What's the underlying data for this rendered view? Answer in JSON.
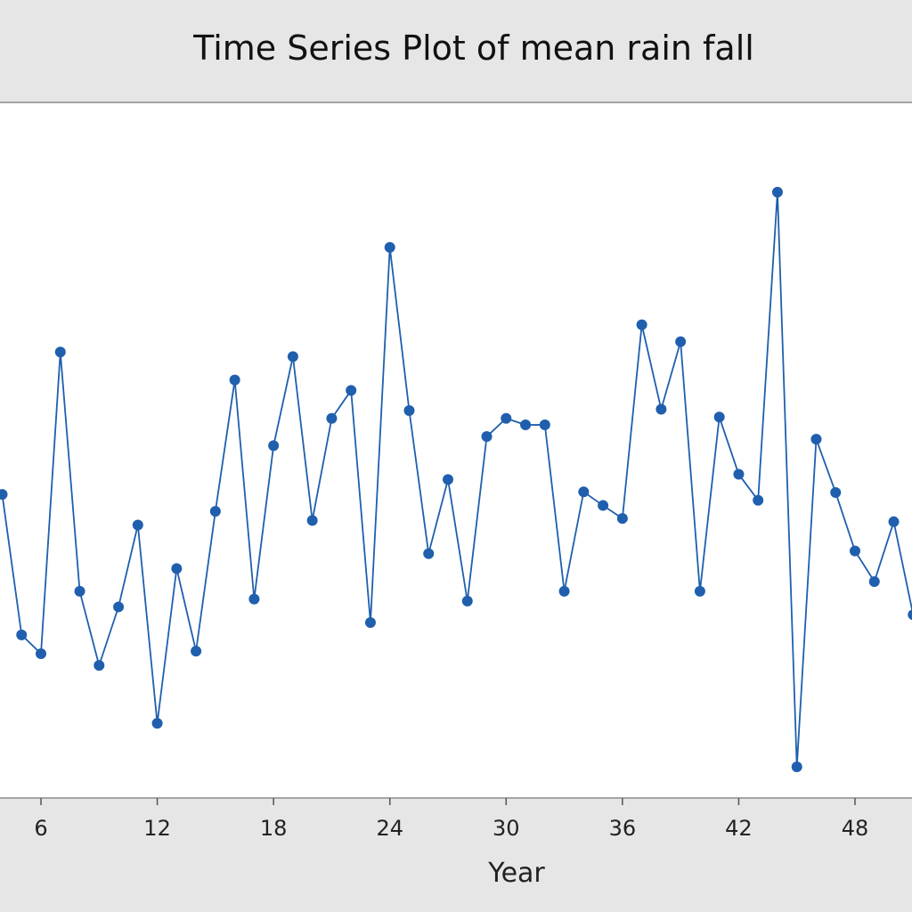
{
  "chart_data": {
    "type": "line",
    "title": "Time Series Plot of mean rain fall",
    "xlabel": "Year",
    "ylabel": "",
    "xlim": [
      3.9,
      51.5
    ],
    "ylim": [
      0,
      100
    ],
    "x_ticks": [
      6,
      12,
      18,
      24,
      30,
      36,
      42,
      48
    ],
    "grid": false,
    "colors": {
      "series": "#1f5fad",
      "panel": "#e6e6e6",
      "plot_area": "#ffffff"
    },
    "series": [
      {
        "x": [
          4,
          5,
          6,
          7,
          8,
          9,
          10,
          11,
          12,
          13,
          14,
          15,
          16,
          17,
          18,
          19,
          20,
          21,
          22,
          23,
          24,
          25,
          26,
          27,
          28,
          29,
          30,
          31,
          32,
          33,
          34,
          35,
          36,
          37,
          38,
          39,
          40,
          41,
          42,
          43,
          44,
          45,
          46,
          47,
          48,
          49,
          50,
          51
        ],
        "values": [
          44.5,
          22.9,
          20.0,
          66.4,
          29.6,
          18.2,
          27.2,
          39.8,
          9.3,
          33.1,
          20.4,
          41.9,
          62.1,
          28.4,
          52.0,
          65.7,
          40.5,
          56.2,
          60.5,
          24.8,
          82.5,
          57.4,
          35.4,
          46.8,
          28.1,
          53.4,
          56.2,
          55.2,
          55.2,
          29.6,
          44.9,
          42.8,
          40.8,
          70.6,
          57.6,
          68.0,
          29.6,
          56.4,
          47.6,
          43.6,
          91.0,
          2.6,
          53.0,
          44.8,
          35.8,
          31.1,
          40.3,
          26.0
        ]
      }
    ]
  }
}
